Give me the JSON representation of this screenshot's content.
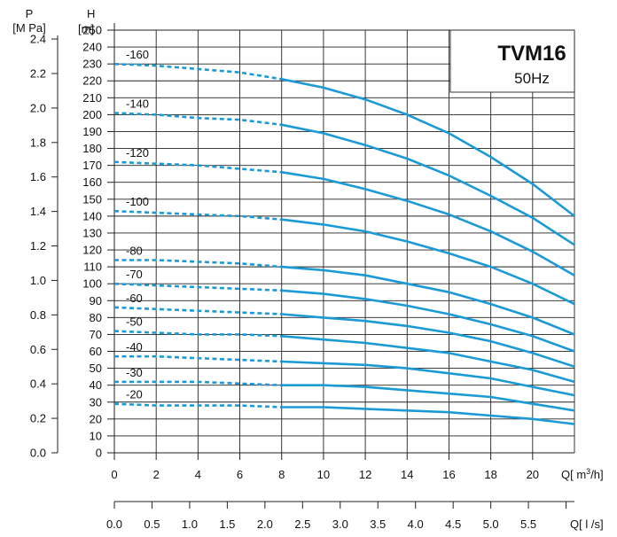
{
  "chart_data": {
    "type": "line",
    "title": "TVM16",
    "subtitle": "50Hz",
    "x_axis": {
      "label": "Q",
      "unit": "[ m3/h]",
      "range": [
        0,
        22
      ],
      "ticks": [
        0,
        2,
        4,
        6,
        8,
        10,
        12,
        14,
        16,
        18,
        20
      ]
    },
    "x2_axis": {
      "label": "Q",
      "unit": "[ l /s]",
      "range": [
        0,
        6.11
      ],
      "ticks": [
        "0.0",
        "0.5",
        "1.0",
        "1.5",
        "2.0",
        "2.5",
        "3.0",
        "3.5",
        "4.0",
        "4.5",
        "5.0",
        "5.5"
      ]
    },
    "y_axis": {
      "label": "H",
      "unit": "[m]",
      "range": [
        0,
        250
      ],
      "ticks": [
        0,
        10,
        20,
        30,
        40,
        50,
        60,
        70,
        80,
        90,
        100,
        110,
        120,
        130,
        140,
        150,
        160,
        170,
        180,
        190,
        200,
        210,
        220,
        230,
        240,
        250
      ]
    },
    "y2_axis": {
      "label": "P",
      "unit": "[M Pa]",
      "ticks": [
        "0.0",
        "0.2",
        "0.4",
        "0.6",
        "0.8",
        "1.0",
        "1.2",
        "1.4",
        "1.6",
        "1.8",
        "2.0",
        "2.2",
        "2.4"
      ]
    },
    "dashed_until_x": 8,
    "grid": true,
    "series": [
      {
        "name": "-160",
        "x": [
          0,
          2,
          4,
          6,
          8,
          10,
          12,
          14,
          16,
          18,
          20,
          22
        ],
        "y": [
          230,
          229,
          227,
          225,
          221,
          216,
          209,
          200,
          189,
          175,
          159,
          140
        ]
      },
      {
        "name": "-140",
        "x": [
          0,
          2,
          4,
          6,
          8,
          10,
          12,
          14,
          16,
          18,
          20,
          22
        ],
        "y": [
          201,
          200,
          198,
          197,
          194,
          189,
          182,
          174,
          164,
          152,
          139,
          123
        ]
      },
      {
        "name": "-120",
        "x": [
          0,
          2,
          4,
          6,
          8,
          10,
          12,
          14,
          16,
          18,
          20,
          22
        ],
        "y": [
          172,
          171,
          170,
          168,
          166,
          162,
          156,
          149,
          141,
          131,
          119,
          105
        ]
      },
      {
        "name": "-100",
        "x": [
          0,
          2,
          4,
          6,
          8,
          10,
          12,
          14,
          16,
          18,
          20,
          22
        ],
        "y": [
          143,
          142,
          141,
          140,
          138,
          135,
          131,
          125,
          118,
          110,
          100,
          88
        ]
      },
      {
        "name": "-80",
        "x": [
          0,
          2,
          4,
          6,
          8,
          10,
          12,
          14,
          16,
          18,
          20,
          22
        ],
        "y": [
          114,
          114,
          113,
          112,
          110,
          108,
          105,
          100,
          95,
          88,
          80,
          70
        ]
      },
      {
        "name": "-70",
        "x": [
          0,
          2,
          4,
          6,
          8,
          10,
          12,
          14,
          16,
          18,
          20,
          22
        ],
        "y": [
          100,
          99,
          98,
          97,
          96,
          94,
          91,
          87,
          82,
          76,
          69,
          60
        ]
      },
      {
        "name": "-60",
        "x": [
          0,
          2,
          4,
          6,
          8,
          10,
          12,
          14,
          16,
          18,
          20,
          22
        ],
        "y": [
          86,
          85,
          84,
          83,
          82,
          80,
          78,
          75,
          71,
          66,
          59,
          51
        ]
      },
      {
        "name": "-50",
        "x": [
          0,
          2,
          4,
          6,
          8,
          10,
          12,
          14,
          16,
          18,
          20,
          22
        ],
        "y": [
          72,
          71,
          70,
          70,
          69,
          67,
          65,
          62,
          59,
          54,
          49,
          42
        ]
      },
      {
        "name": "-40",
        "x": [
          0,
          2,
          4,
          6,
          8,
          10,
          12,
          14,
          16,
          18,
          20,
          22
        ],
        "y": [
          57,
          57,
          56,
          55,
          54,
          53,
          52,
          50,
          47,
          44,
          39,
          34
        ]
      },
      {
        "name": "-30",
        "x": [
          0,
          2,
          4,
          6,
          8,
          10,
          12,
          14,
          16,
          18,
          20,
          22
        ],
        "y": [
          42,
          42,
          42,
          41,
          40,
          40,
          39,
          37,
          35,
          33,
          29,
          25
        ]
      },
      {
        "name": "-20",
        "x": [
          0,
          2,
          4,
          6,
          8,
          10,
          12,
          14,
          16,
          18,
          20,
          22
        ],
        "y": [
          29,
          28,
          28,
          28,
          27,
          27,
          26,
          25,
          24,
          22,
          20,
          17
        ]
      }
    ],
    "line_color": "#1b9ad6"
  }
}
